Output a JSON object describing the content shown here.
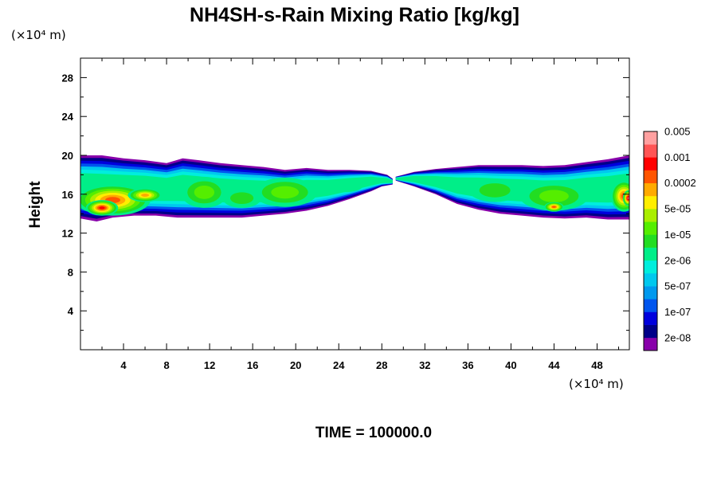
{
  "chart_data": {
    "type": "heatmap",
    "title": "NH4SH-s-Rain Mixing Ratio [kg/kg]",
    "x_unit": "(×10⁴ m)",
    "y_unit": "(×10⁴ m)",
    "ylabel": "Height",
    "xlim": [
      0,
      51
    ],
    "ylim": [
      0,
      30
    ],
    "x_ticks": [
      4,
      8,
      12,
      16,
      20,
      24,
      28,
      32,
      36,
      40,
      44,
      48
    ],
    "y_ticks": [
      4,
      8,
      12,
      16,
      20,
      24,
      28
    ],
    "x_tick_labels": [
      "4",
      "8",
      "12",
      "16",
      "20",
      "24",
      "28",
      "32",
      "36",
      "40",
      "44",
      "48"
    ],
    "y_tick_labels": [
      "4",
      "8",
      "12",
      "16",
      "20",
      "24",
      "28"
    ],
    "footer": "TIME = 100000.0",
    "colorbar": {
      "colors": [
        "#8800aa",
        "#000088",
        "#0000dd",
        "#0055ee",
        "#0099ee",
        "#00c8ee",
        "#00eedd",
        "#00ee88",
        "#22dd22",
        "#55ee00",
        "#aaee00",
        "#ffee00",
        "#ffaa00",
        "#ff5500",
        "#ff0000",
        "#ff5555",
        "#ffa0a0"
      ],
      "labels": [
        "2e-08",
        "1e-07",
        "5e-07",
        "2e-06",
        "1e-05",
        "5e-05",
        "0.0002",
        "0.001",
        "0.005"
      ]
    },
    "cloud_layer": {
      "bottom": [
        [
          0,
          13.5
        ],
        [
          1.5,
          13.2
        ],
        [
          3,
          13.6
        ],
        [
          5,
          13.8
        ],
        [
          7,
          13.8
        ],
        [
          9,
          13.6
        ],
        [
          11,
          13.6
        ],
        [
          13,
          13.6
        ],
        [
          15,
          13.6
        ],
        [
          17,
          13.8
        ],
        [
          19,
          14.0
        ],
        [
          21,
          14.3
        ],
        [
          23,
          14.8
        ],
        [
          25,
          15.5
        ],
        [
          27,
          16.3
        ],
        [
          28,
          16.8
        ],
        [
          29,
          17.0
        ]
      ],
      "top": [
        [
          0,
          20.0
        ],
        [
          2,
          20.0
        ],
        [
          4,
          19.7
        ],
        [
          6,
          19.5
        ],
        [
          8,
          19.2
        ],
        [
          9.5,
          19.7
        ],
        [
          11,
          19.5
        ],
        [
          13,
          19.2
        ],
        [
          15,
          19.0
        ],
        [
          17,
          18.8
        ],
        [
          19,
          18.5
        ],
        [
          21,
          18.7
        ],
        [
          23,
          18.5
        ],
        [
          25,
          18.5
        ],
        [
          27,
          18.4
        ],
        [
          28.5,
          18.0
        ],
        [
          29,
          17.6
        ]
      ],
      "right_bottom": [
        [
          29.3,
          17.4
        ],
        [
          31,
          16.8
        ],
        [
          33,
          16.0
        ],
        [
          35,
          15.0
        ],
        [
          37,
          14.4
        ],
        [
          39,
          14.0
        ],
        [
          41,
          13.8
        ],
        [
          43,
          13.6
        ],
        [
          45,
          13.5
        ],
        [
          47,
          13.6
        ],
        [
          49,
          13.4
        ],
        [
          51,
          13.4
        ]
      ],
      "right_top": [
        [
          29.3,
          17.8
        ],
        [
          31,
          18.3
        ],
        [
          33,
          18.6
        ],
        [
          35,
          18.8
        ],
        [
          37,
          19.0
        ],
        [
          39,
          19.0
        ],
        [
          41,
          19.0
        ],
        [
          43,
          18.9
        ],
        [
          45,
          19.0
        ],
        [
          47,
          19.3
        ],
        [
          49,
          19.6
        ],
        [
          51,
          20.0
        ]
      ]
    },
    "cores": [
      {
        "x": 3,
        "y": 15.4,
        "rx": 3.5,
        "ry": 1.6,
        "level": 13
      },
      {
        "x": 2,
        "y": 14.6,
        "rx": 1.5,
        "ry": 0.8,
        "level": 14
      },
      {
        "x": 6,
        "y": 15.9,
        "rx": 1.6,
        "ry": 0.7,
        "level": 12
      },
      {
        "x": 11.5,
        "y": 16.2,
        "rx": 2.2,
        "ry": 1.6,
        "level": 9
      },
      {
        "x": 19,
        "y": 16.2,
        "rx": 3.0,
        "ry": 1.5,
        "level": 9
      },
      {
        "x": 15,
        "y": 15.6,
        "rx": 1.8,
        "ry": 1.0,
        "level": 8
      },
      {
        "x": 24.5,
        "y": 16.8,
        "rx": 1.7,
        "ry": 0.6,
        "level": 7
      },
      {
        "x": 38.5,
        "y": 16.4,
        "rx": 2.4,
        "ry": 1.2,
        "level": 8
      },
      {
        "x": 44,
        "y": 15.8,
        "rx": 3.2,
        "ry": 1.5,
        "level": 9
      },
      {
        "x": 44,
        "y": 14.7,
        "rx": 0.9,
        "ry": 0.5,
        "level": 13
      },
      {
        "x": 50.5,
        "y": 15.8,
        "rx": 1.2,
        "ry": 1.6,
        "level": 13
      },
      {
        "x": 50.9,
        "y": 15.6,
        "rx": 0.5,
        "ry": 0.8,
        "level": 15
      }
    ]
  }
}
